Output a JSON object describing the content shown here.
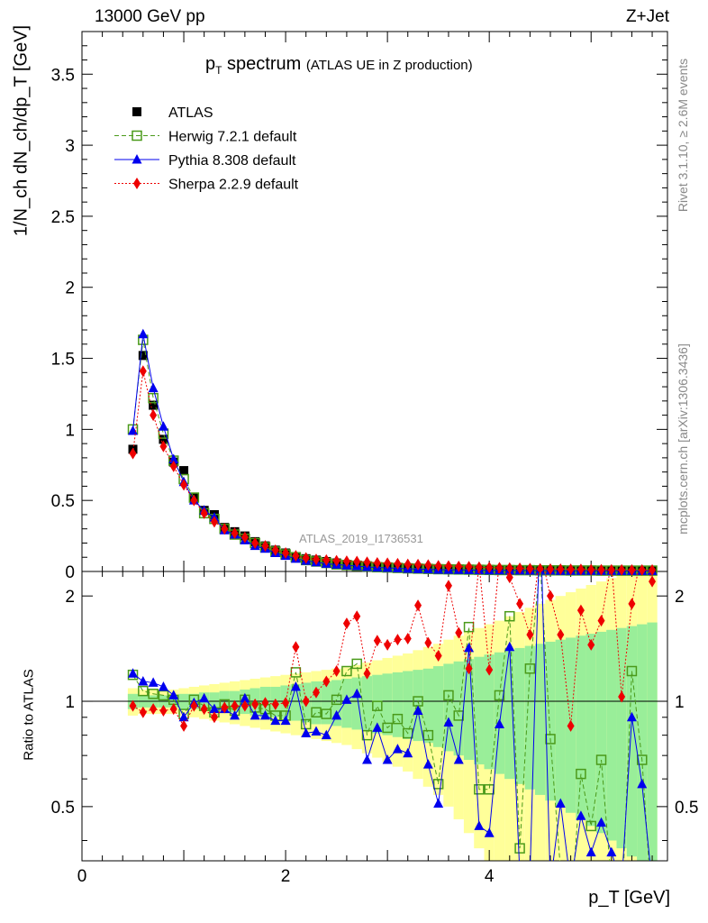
{
  "header": {
    "energy": "13000 GeV pp",
    "process": "Z+Jet"
  },
  "side_text": {
    "rivet": "Rivet 3.1.10, ≥ 2.6M events",
    "mcplots": "mcplots.cern.ch [arXiv:1306.3436]"
  },
  "chart_data": {
    "type": "line",
    "title": "p_T spectrum (ATLAS UE in Z production)",
    "title_main": "p",
    "title_sub": "T",
    "title_word": " spectrum",
    "title_note": "(ATLAS UE in Z production)",
    "watermark": "ATLAS_2019_I1736531",
    "xlabel": "p_T [GeV]",
    "ylabel_top": "1/N_ch dN_ch/dp_T [GeV]",
    "ylabel_bottom": "Ratio to ATLAS",
    "xlim": [
      0,
      5.75
    ],
    "ylim_top": [
      0,
      3.8
    ],
    "ylim_ratio": [
      0.35,
      2.35
    ],
    "x_ticks": [
      "0",
      "2",
      "4"
    ],
    "y_ticks_top": [
      "0",
      "0.5",
      "1",
      "1.5",
      "2",
      "2.5",
      "3",
      "3.5"
    ],
    "y_ticks_ratio": [
      "0.5",
      "1",
      "2"
    ],
    "legend": [
      "ATLAS",
      "Herwig 7.2.1 default",
      "Pythia 8.308 default",
      "Sherpa 2.2.9 default"
    ],
    "x": [
      0.5,
      0.6,
      0.7,
      0.8,
      0.9,
      1.0,
      1.1,
      1.2,
      1.3,
      1.4,
      1.5,
      1.6,
      1.7,
      1.8,
      1.9,
      2.0,
      2.1,
      2.2,
      2.3,
      2.4,
      2.5,
      2.6,
      2.7,
      2.8,
      2.9,
      3.0,
      3.1,
      3.2,
      3.3,
      3.4,
      3.5,
      3.6,
      3.7,
      3.8,
      3.9,
      4.0,
      4.1,
      4.2,
      4.3,
      4.4,
      4.5,
      4.6,
      4.7,
      4.8,
      4.9,
      5.0,
      5.1,
      5.2,
      5.3,
      5.4,
      5.5,
      5.6
    ],
    "series": [
      {
        "name": "ATLAS",
        "color": "#000000",
        "values": [
          0.86,
          1.52,
          1.17,
          0.93,
          0.77,
          0.71,
          0.52,
          0.43,
          0.4,
          0.31,
          0.28,
          0.25,
          0.21,
          0.18,
          0.15,
          0.13,
          0.105,
          0.09,
          0.08,
          0.07,
          0.06,
          0.05,
          0.045,
          0.04,
          0.035,
          0.032,
          0.028,
          0.025,
          0.022,
          0.02,
          0.018,
          0.016,
          0.015,
          0.014,
          0.013,
          0.012,
          0.011,
          0.01,
          0.01,
          0.009,
          0.008,
          0.008,
          0.008,
          0.008,
          0.007,
          0.007,
          0.007,
          0.006,
          0.006,
          0.006,
          0.006,
          0.006
        ]
      },
      {
        "name": "Herwig 7.2.1 default",
        "color": "#4a9a1a",
        "values": [
          1.0,
          1.63,
          1.22,
          0.97,
          0.78,
          0.65,
          0.52,
          0.41,
          0.37,
          0.3,
          0.26,
          0.23,
          0.2,
          0.17,
          0.14,
          0.12,
          0.1,
          0.08,
          0.07,
          0.06,
          0.05,
          0.045,
          0.04,
          0.035,
          0.03,
          0.028,
          0.025,
          0.022,
          0.02,
          0.018,
          0.016,
          0.015,
          0.014,
          0.013,
          0.012,
          0.011,
          0.01,
          0.01,
          0.009,
          0.009,
          0.008,
          0.008,
          0.008,
          0.007,
          0.007,
          0.007,
          0.006,
          0.006,
          0.006,
          0.006,
          0.006,
          0.006
        ],
        "ratio": [
          1.19,
          1.07,
          1.05,
          1.04,
          1.01,
          0.92,
          1.01,
          0.97,
          0.93,
          0.98,
          0.94,
          1.01,
          0.96,
          0.95,
          0.91,
          0.91,
          1.21,
          0.86,
          0.93,
          0.92,
          1.01,
          1.22,
          1.28,
          0.8,
          0.97,
          0.84,
          0.89,
          0.81,
          1.0,
          0.8,
          0.58,
          1.04,
          0.91,
          1.63,
          0.56,
          0.56,
          1.04,
          1.75,
          0.38,
          1.24,
          2.47,
          0.78,
          0.33,
          0.25,
          0.62,
          0.44,
          0.68,
          0.3,
          0.25,
          1.22,
          0.68,
          0.25
        ]
      },
      {
        "name": "Pythia 8.308 default",
        "color": "#0000ee",
        "values": [
          0.99,
          1.67,
          1.29,
          1.02,
          0.79,
          0.63,
          0.5,
          0.43,
          0.38,
          0.29,
          0.26,
          0.22,
          0.18,
          0.16,
          0.13,
          0.11,
          0.09,
          0.075,
          0.065,
          0.055,
          0.048,
          0.043,
          0.038,
          0.032,
          0.028,
          0.025,
          0.022,
          0.019,
          0.017,
          0.015,
          0.013,
          0.012,
          0.011,
          0.01,
          0.009,
          0.008,
          0.008,
          0.007,
          0.007,
          0.006,
          0.006,
          0.006,
          0.005,
          0.005,
          0.005,
          0.005,
          0.005,
          0.005,
          0.004,
          0.004,
          0.004,
          0.004
        ],
        "ratio": [
          1.2,
          1.14,
          1.13,
          1.1,
          1.04,
          0.9,
          0.99,
          1.02,
          0.95,
          0.95,
          0.91,
          1.02,
          0.91,
          0.91,
          0.88,
          0.88,
          1.1,
          0.81,
          0.82,
          0.8,
          0.91,
          1.01,
          1.05,
          0.68,
          0.84,
          0.68,
          0.73,
          0.71,
          0.94,
          0.66,
          0.51,
          0.87,
          0.68,
          1.42,
          0.44,
          0.42,
          0.86,
          1.43,
          0.32,
          0.32,
          3.5,
          0.3,
          0.51,
          0.3,
          0.47,
          0.37,
          0.45,
          0.37,
          0.3,
          0.9,
          0.58,
          0.3
        ]
      },
      {
        "name": "Sherpa 2.2.9 default",
        "color": "#ee0000",
        "values": [
          0.83,
          1.41,
          1.1,
          0.88,
          0.74,
          0.61,
          0.5,
          0.41,
          0.35,
          0.3,
          0.27,
          0.24,
          0.2,
          0.18,
          0.15,
          0.13,
          0.11,
          0.095,
          0.085,
          0.08,
          0.075,
          0.072,
          0.07,
          0.065,
          0.06,
          0.058,
          0.055,
          0.05,
          0.048,
          0.045,
          0.04,
          0.038,
          0.035,
          0.033,
          0.03,
          0.028,
          0.026,
          0.024,
          0.022,
          0.02,
          0.018,
          0.017,
          0.016,
          0.015,
          0.014,
          0.013,
          0.012,
          0.011,
          0.011,
          0.01,
          0.01,
          0.01
        ],
        "ratio": [
          0.97,
          0.93,
          0.95,
          0.94,
          0.95,
          0.85,
          0.97,
          0.95,
          0.9,
          0.96,
          0.97,
          0.97,
          0.98,
          0.99,
          0.98,
          0.99,
          1.43,
          1.0,
          1.06,
          1.14,
          1.22,
          1.67,
          1.75,
          1.2,
          1.49,
          1.45,
          1.5,
          1.51,
          1.88,
          1.47,
          1.35,
          2.14,
          1.57,
          1.24,
          2.47,
          1.23,
          2.54,
          2.26,
          1.9,
          1.55,
          2.7,
          2.0,
          1.55,
          0.85,
          1.82,
          1.45,
          1.7,
          2.5,
          1.03,
          1.9,
          2.7,
          2.2
        ]
      }
    ],
    "uncertainty_bands": {
      "inner_color": "#99ee99",
      "outer_color": "#ffff99",
      "inner_half_width": [
        0.05,
        0.04,
        0.04,
        0.04,
        0.04,
        0.05,
        0.05,
        0.06,
        0.06,
        0.07,
        0.07,
        0.08,
        0.09,
        0.1,
        0.1,
        0.11,
        0.12,
        0.13,
        0.14,
        0.14,
        0.15,
        0.16,
        0.17,
        0.18,
        0.19,
        0.2,
        0.21,
        0.22,
        0.23,
        0.24,
        0.26,
        0.28,
        0.3,
        0.32,
        0.34,
        0.36,
        0.38,
        0.4,
        0.42,
        0.44,
        0.46,
        0.48,
        0.5,
        0.52,
        0.54,
        0.56,
        0.58,
        0.6,
        0.62,
        0.64,
        0.66,
        0.68
      ],
      "outer_half_width": [
        0.09,
        0.08,
        0.08,
        0.08,
        0.08,
        0.09,
        0.1,
        0.11,
        0.12,
        0.13,
        0.14,
        0.15,
        0.16,
        0.17,
        0.18,
        0.19,
        0.2,
        0.21,
        0.22,
        0.23,
        0.24,
        0.25,
        0.27,
        0.29,
        0.31,
        0.33,
        0.35,
        0.37,
        0.4,
        0.43,
        0.46,
        0.5,
        0.54,
        0.58,
        0.62,
        0.66,
        0.7,
        0.75,
        0.8,
        0.85,
        0.9,
        0.95,
        1.0,
        1.05,
        1.1,
        1.15,
        1.2,
        1.25,
        1.3,
        1.35,
        1.4,
        1.45
      ]
    }
  }
}
